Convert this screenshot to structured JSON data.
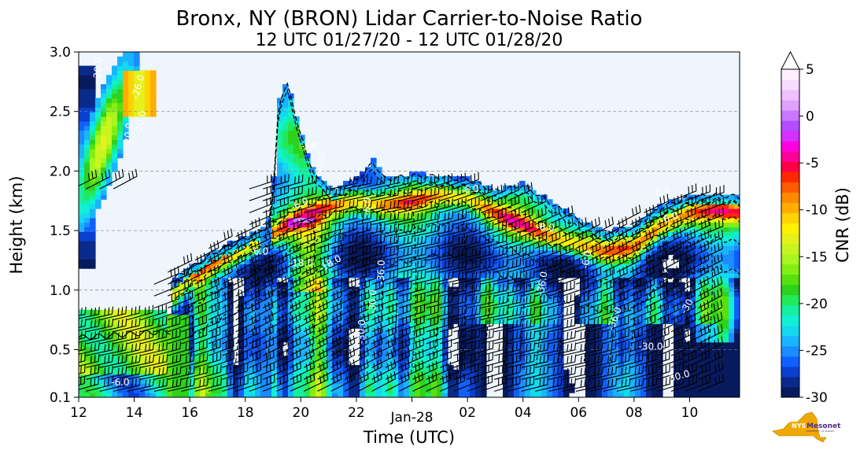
{
  "chart_data": {
    "type": "heatmap",
    "title": "Bronx, NY (BRON) Lidar Carrier-to-Noise Ratio",
    "subtitle": "12 UTC 01/27/20 - 12 UTC 01/28/20",
    "xlabel": "Time (UTC)",
    "ylabel": "Height (km)",
    "x_unit": "hours since 12 UTC 01/27/20",
    "xlim": [
      0,
      23.8
    ],
    "ylim": [
      0.1,
      3.0
    ],
    "x_ticks": [
      {
        "value": 0,
        "label": "12"
      },
      {
        "value": 2,
        "label": "14"
      },
      {
        "value": 4,
        "label": "16"
      },
      {
        "value": 6,
        "label": "18"
      },
      {
        "value": 8,
        "label": "20"
      },
      {
        "value": 10,
        "label": "22"
      },
      {
        "value": 12,
        "label": "Jan-28"
      },
      {
        "value": 14,
        "label": "02"
      },
      {
        "value": 16,
        "label": "04"
      },
      {
        "value": 18,
        "label": "06"
      },
      {
        "value": 20,
        "label": "08"
      },
      {
        "value": 22,
        "label": "10"
      }
    ],
    "y_ticks": [
      {
        "value": 0.1,
        "label": "0.1"
      },
      {
        "value": 0.5,
        "label": "0.5"
      },
      {
        "value": 1.0,
        "label": "1.0"
      },
      {
        "value": 1.5,
        "label": "1.5"
      },
      {
        "value": 2.0,
        "label": "2.0"
      },
      {
        "value": 2.5,
        "label": "2.5"
      },
      {
        "value": 3.0,
        "label": "3.0"
      }
    ],
    "grid": "dashed horizontal at y ticks",
    "background_color": "#eef5fc",
    "colorbar": {
      "label": "CNR (dB)",
      "range": [
        -30,
        5
      ],
      "extend": "max",
      "ticks": [
        {
          "value": 5,
          "label": "5"
        },
        {
          "value": 0,
          "label": "0"
        },
        {
          "value": -5,
          "label": "-5"
        },
        {
          "value": -10,
          "label": "-10"
        },
        {
          "value": -15,
          "label": "-15"
        },
        {
          "value": -20,
          "label": "-20"
        },
        {
          "value": -25,
          "label": "-25"
        },
        {
          "value": -30,
          "label": "-30"
        }
      ],
      "colors": [
        "#081a5e",
        "#0a2a8a",
        "#0a3fd0",
        "#1060ff",
        "#1a8cff",
        "#19b4ff",
        "#14d9f0",
        "#10f0d6",
        "#14f0a0",
        "#22e85a",
        "#2dd21c",
        "#58e010",
        "#84ee14",
        "#a8f520",
        "#c8f520",
        "#e6f01a",
        "#fff000",
        "#ffd200",
        "#ffae00",
        "#ff8a00",
        "#ff5a00",
        "#ff2800",
        "#ff0044",
        "#ff0099",
        "#ff00e0",
        "#d630ff",
        "#b44cff",
        "#c878ff",
        "#e0a0ff",
        "#f0c0ff",
        "#f8dcff",
        "#fff0ff"
      ],
      "arrow_color": "#ffffff"
    },
    "contour_labels": [
      {
        "t": 2.25,
        "h": 2.7,
        "text": "-26.0",
        "rot": -75
      },
      {
        "t": 2.35,
        "h": 2.4,
        "text": "-20.0",
        "rot": -80
      },
      {
        "t": 0.8,
        "h": 2.85,
        "text": "-20.0",
        "rot": -85
      },
      {
        "t": 8.3,
        "h": 2.18,
        "text": "-18",
        "rot": 0
      },
      {
        "t": 8.8,
        "h": 2.05,
        "text": "-18.0",
        "rot": -80
      },
      {
        "t": 6.5,
        "h": 1.3,
        "text": "-6.0",
        "rot": 0
      },
      {
        "t": 8.0,
        "h": 1.7,
        "text": "-6.0",
        "rot": -25
      },
      {
        "t": 8.0,
        "h": 1.2,
        "text": "-18.0",
        "rot": 0
      },
      {
        "t": 9.1,
        "h": 1.2,
        "text": "-18.0",
        "rot": -30
      },
      {
        "t": 10.5,
        "h": 1.7,
        "text": "-6.0",
        "rot": -85
      },
      {
        "t": 14.1,
        "h": 1.82,
        "text": "-6.0",
        "rot": -5
      },
      {
        "t": 16.8,
        "h": 1.5,
        "text": "-6.0",
        "rot": 0
      },
      {
        "t": 18.4,
        "h": 1.25,
        "text": "-6.0",
        "rot": -80
      },
      {
        "t": 21.3,
        "h": 1.58,
        "text": "-6.0",
        "rot": -20
      },
      {
        "t": 21.0,
        "h": 1.8,
        "text": "-6.0",
        "rot": -10
      },
      {
        "t": 10.7,
        "h": 0.9,
        "text": "-30.0",
        "rot": -88
      },
      {
        "t": 10.3,
        "h": 0.65,
        "text": "-30.0",
        "rot": -88
      },
      {
        "t": 11.0,
        "h": 1.15,
        "text": "-36.0",
        "rot": -88
      },
      {
        "t": 16.8,
        "h": 1.05,
        "text": "-36.0",
        "rot": -80
      },
      {
        "t": 19.4,
        "h": 0.75,
        "text": "-36.0",
        "rot": -70
      },
      {
        "t": 22.0,
        "h": 0.85,
        "text": "-30",
        "rot": -60
      },
      {
        "t": 20.6,
        "h": 0.5,
        "text": "-30.0",
        "rot": 0
      },
      {
        "t": 21.6,
        "h": 0.25,
        "text": "-30.0",
        "rot": -15
      },
      {
        "t": 1.5,
        "h": 0.2,
        "text": "-6.0",
        "rot": 0
      },
      {
        "t": 1.9,
        "h": 2.3,
        "text": "-20.0",
        "rot": -85
      }
    ],
    "logo": {
      "name": "NYS Mesonet",
      "badge": "NYS",
      "word": "Mesonet",
      "tagline": "UNIVERSITY AT ALBANY"
    }
  }
}
